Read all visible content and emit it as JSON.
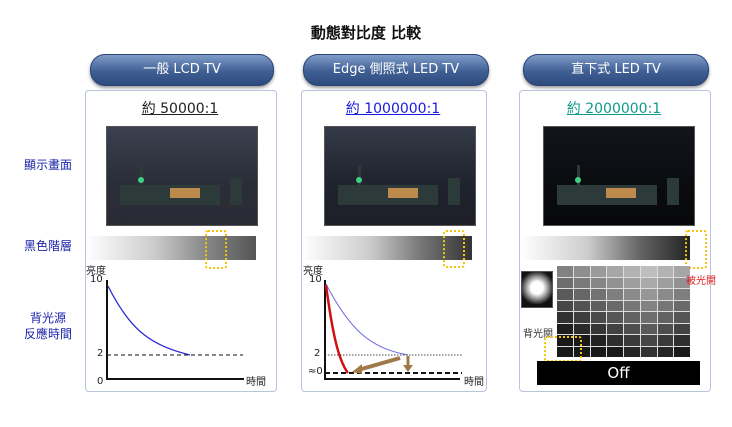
{
  "title": "動態對比度 比較",
  "row_labels": {
    "display": "顯示畫面",
    "black_level": "黑色階層",
    "backlight_line1": "背光源",
    "backlight_line2": "反應時間"
  },
  "columns": [
    {
      "header": "一般 LCD TV",
      "ratio": "約 50000:1",
      "ratio_color": "#222222"
    },
    {
      "header": "Edge 側照式 LED TV",
      "ratio": "約 1000000:1",
      "ratio_color": "#1a1ae0"
    },
    {
      "header": "直下式 LED TV",
      "ratio": "約 2000000:1",
      "ratio_color": "#0f9a8a"
    }
  ],
  "chart": {
    "ylabel": "亮度",
    "xlabel": "時間",
    "y10": "10",
    "y2": "2",
    "y0": "0",
    "y_approx0": "≈0"
  },
  "panel3": {
    "backlight_on": "被光開",
    "backlight_off": "背光關",
    "off_label": "Off",
    "on_color": "#e02020"
  }
}
